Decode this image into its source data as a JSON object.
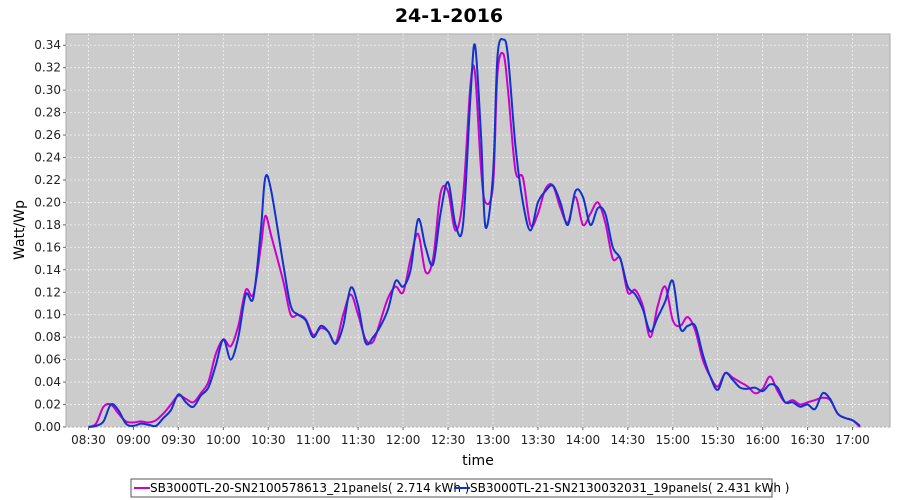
{
  "chart_data": {
    "type": "line",
    "title": "24-1-2016",
    "xlabel": "time",
    "ylabel": "Watt/Wp",
    "xlim": [
      "08:15",
      "17:25"
    ],
    "ylim": [
      0,
      0.35
    ],
    "grid": true,
    "legend_position": "bottom",
    "x_ticks": [
      "08:30",
      "09:00",
      "09:30",
      "10:00",
      "10:30",
      "11:00",
      "11:30",
      "12:00",
      "12:30",
      "13:00",
      "13:30",
      "14:00",
      "14:30",
      "15:00",
      "15:30",
      "16:00",
      "16:30",
      "17:00"
    ],
    "y_ticks": [
      "0.00",
      "0.02",
      "0.04",
      "0.06",
      "0.08",
      "0.10",
      "0.12",
      "0.14",
      "0.16",
      "0.18",
      "0.20",
      "0.22",
      "0.24",
      "0.26",
      "0.28",
      "0.30",
      "0.32",
      "0.34"
    ],
    "colors": {
      "plot_background": "#cccccc",
      "grid": "#f2f2f2",
      "series_1": "#cc00cc",
      "series_2": "#1133cc"
    },
    "series": [
      {
        "name": "SB3000TL-20-SN2100578613_21panels( 2.714 kWh )",
        "color": "#cc00cc",
        "points": [
          [
            "08:30",
            0.0
          ],
          [
            "08:35",
            0.003
          ],
          [
            "08:40",
            0.018
          ],
          [
            "08:45",
            0.02
          ],
          [
            "08:50",
            0.012
          ],
          [
            "08:55",
            0.005
          ],
          [
            "09:00",
            0.004
          ],
          [
            "09:05",
            0.005
          ],
          [
            "09:10",
            0.004
          ],
          [
            "09:15",
            0.006
          ],
          [
            "09:20",
            0.012
          ],
          [
            "09:25",
            0.02
          ],
          [
            "09:30",
            0.028
          ],
          [
            "09:35",
            0.025
          ],
          [
            "09:40",
            0.022
          ],
          [
            "09:45",
            0.03
          ],
          [
            "09:50",
            0.04
          ],
          [
            "09:55",
            0.065
          ],
          [
            "10:00",
            0.078
          ],
          [
            "10:05",
            0.072
          ],
          [
            "10:10",
            0.09
          ],
          [
            "10:15",
            0.122
          ],
          [
            "10:20",
            0.118
          ],
          [
            "10:25",
            0.16
          ],
          [
            "10:28",
            0.188
          ],
          [
            "10:32",
            0.17
          ],
          [
            "10:40",
            0.13
          ],
          [
            "10:45",
            0.1
          ],
          [
            "10:50",
            0.1
          ],
          [
            "10:55",
            0.096
          ],
          [
            "11:00",
            0.082
          ],
          [
            "11:05",
            0.088
          ],
          [
            "11:10",
            0.085
          ],
          [
            "11:15",
            0.075
          ],
          [
            "11:20",
            0.1
          ],
          [
            "11:25",
            0.118
          ],
          [
            "11:30",
            0.1
          ],
          [
            "11:35",
            0.078
          ],
          [
            "11:40",
            0.076
          ],
          [
            "11:45",
            0.095
          ],
          [
            "11:50",
            0.115
          ],
          [
            "11:55",
            0.125
          ],
          [
            "12:00",
            0.12
          ],
          [
            "12:05",
            0.15
          ],
          [
            "12:10",
            0.172
          ],
          [
            "12:15",
            0.138
          ],
          [
            "12:20",
            0.15
          ],
          [
            "12:25",
            0.208
          ],
          [
            "12:30",
            0.21
          ],
          [
            "12:35",
            0.175
          ],
          [
            "12:40",
            0.205
          ],
          [
            "12:45",
            0.305
          ],
          [
            "12:48",
            0.315
          ],
          [
            "12:52",
            0.23
          ],
          [
            "12:55",
            0.2
          ],
          [
            "13:00",
            0.215
          ],
          [
            "13:03",
            0.315
          ],
          [
            "13:07",
            0.332
          ],
          [
            "13:10",
            0.3
          ],
          [
            "13:15",
            0.228
          ],
          [
            "13:20",
            0.222
          ],
          [
            "13:25",
            0.18
          ],
          [
            "13:30",
            0.19
          ],
          [
            "13:35",
            0.212
          ],
          [
            "13:40",
            0.215
          ],
          [
            "13:45",
            0.195
          ],
          [
            "13:50",
            0.182
          ],
          [
            "13:55",
            0.205
          ],
          [
            "14:00",
            0.18
          ],
          [
            "14:05",
            0.19
          ],
          [
            "14:10",
            0.2
          ],
          [
            "14:15",
            0.182
          ],
          [
            "14:20",
            0.15
          ],
          [
            "14:25",
            0.15
          ],
          [
            "14:30",
            0.12
          ],
          [
            "14:35",
            0.122
          ],
          [
            "14:40",
            0.108
          ],
          [
            "14:45",
            0.08
          ],
          [
            "14:50",
            0.108
          ],
          [
            "14:55",
            0.125
          ],
          [
            "15:00",
            0.095
          ],
          [
            "15:05",
            0.09
          ],
          [
            "15:10",
            0.098
          ],
          [
            "15:15",
            0.086
          ],
          [
            "15:20",
            0.06
          ],
          [
            "15:25",
            0.045
          ],
          [
            "15:30",
            0.036
          ],
          [
            "15:35",
            0.048
          ],
          [
            "15:40",
            0.044
          ],
          [
            "15:45",
            0.04
          ],
          [
            "15:50",
            0.036
          ],
          [
            "15:55",
            0.03
          ],
          [
            "16:00",
            0.034
          ],
          [
            "16:05",
            0.045
          ],
          [
            "16:10",
            0.032
          ],
          [
            "16:15",
            0.022
          ],
          [
            "16:20",
            0.024
          ],
          [
            "16:25",
            0.02
          ],
          [
            "16:30",
            0.022
          ],
          [
            "16:35",
            0.024
          ],
          [
            "16:40",
            0.026
          ],
          [
            "16:45",
            0.024
          ],
          [
            "16:50",
            0.012
          ],
          [
            "16:55",
            0.008
          ],
          [
            "17:00",
            0.006
          ],
          [
            "17:05",
            0.0
          ]
        ]
      },
      {
        "name": "SB3000TL-21-SN2130032031_19panels( 2.431 kWh )",
        "color": "#1133cc",
        "points": [
          [
            "08:30",
            0.0
          ],
          [
            "08:35",
            0.001
          ],
          [
            "08:40",
            0.005
          ],
          [
            "08:45",
            0.02
          ],
          [
            "08:50",
            0.015
          ],
          [
            "08:55",
            0.003
          ],
          [
            "09:00",
            0.001
          ],
          [
            "09:05",
            0.003
          ],
          [
            "09:10",
            0.002
          ],
          [
            "09:15",
            0.001
          ],
          [
            "09:20",
            0.008
          ],
          [
            "09:25",
            0.015
          ],
          [
            "09:30",
            0.029
          ],
          [
            "09:35",
            0.022
          ],
          [
            "09:40",
            0.018
          ],
          [
            "09:45",
            0.028
          ],
          [
            "09:50",
            0.035
          ],
          [
            "09:55",
            0.055
          ],
          [
            "10:00",
            0.078
          ],
          [
            "10:05",
            0.06
          ],
          [
            "10:10",
            0.08
          ],
          [
            "10:15",
            0.118
          ],
          [
            "10:20",
            0.115
          ],
          [
            "10:25",
            0.175
          ],
          [
            "10:28",
            0.222
          ],
          [
            "10:32",
            0.21
          ],
          [
            "10:40",
            0.145
          ],
          [
            "10:45",
            0.108
          ],
          [
            "10:50",
            0.1
          ],
          [
            "10:55",
            0.095
          ],
          [
            "11:00",
            0.08
          ],
          [
            "11:05",
            0.09
          ],
          [
            "11:10",
            0.085
          ],
          [
            "11:15",
            0.074
          ],
          [
            "11:20",
            0.09
          ],
          [
            "11:25",
            0.124
          ],
          [
            "11:30",
            0.108
          ],
          [
            "11:35",
            0.075
          ],
          [
            "11:40",
            0.08
          ],
          [
            "11:45",
            0.09
          ],
          [
            "11:50",
            0.105
          ],
          [
            "11:55",
            0.13
          ],
          [
            "12:00",
            0.125
          ],
          [
            "12:05",
            0.14
          ],
          [
            "12:10",
            0.185
          ],
          [
            "12:15",
            0.16
          ],
          [
            "12:20",
            0.145
          ],
          [
            "12:25",
            0.19
          ],
          [
            "12:30",
            0.218
          ],
          [
            "12:35",
            0.18
          ],
          [
            "12:40",
            0.18
          ],
          [
            "12:45",
            0.295
          ],
          [
            "12:48",
            0.34
          ],
          [
            "12:52",
            0.26
          ],
          [
            "12:55",
            0.178
          ],
          [
            "13:00",
            0.225
          ],
          [
            "13:03",
            0.33
          ],
          [
            "13:07",
            0.345
          ],
          [
            "13:10",
            0.33
          ],
          [
            "13:15",
            0.25
          ],
          [
            "13:20",
            0.2
          ],
          [
            "13:25",
            0.175
          ],
          [
            "13:30",
            0.2
          ],
          [
            "13:35",
            0.21
          ],
          [
            "13:40",
            0.215
          ],
          [
            "13:45",
            0.2
          ],
          [
            "13:50",
            0.18
          ],
          [
            "13:55",
            0.21
          ],
          [
            "14:00",
            0.205
          ],
          [
            "14:05",
            0.18
          ],
          [
            "14:10",
            0.195
          ],
          [
            "14:15",
            0.19
          ],
          [
            "14:20",
            0.16
          ],
          [
            "14:25",
            0.15
          ],
          [
            "14:30",
            0.125
          ],
          [
            "14:35",
            0.118
          ],
          [
            "14:40",
            0.105
          ],
          [
            "14:45",
            0.085
          ],
          [
            "14:50",
            0.098
          ],
          [
            "14:55",
            0.112
          ],
          [
            "15:00",
            0.13
          ],
          [
            "15:05",
            0.088
          ],
          [
            "15:10",
            0.09
          ],
          [
            "15:15",
            0.09
          ],
          [
            "15:20",
            0.065
          ],
          [
            "15:25",
            0.045
          ],
          [
            "15:30",
            0.033
          ],
          [
            "15:35",
            0.048
          ],
          [
            "15:40",
            0.042
          ],
          [
            "15:45",
            0.035
          ],
          [
            "15:50",
            0.034
          ],
          [
            "15:55",
            0.035
          ],
          [
            "16:00",
            0.032
          ],
          [
            "16:05",
            0.038
          ],
          [
            "16:10",
            0.035
          ],
          [
            "16:15",
            0.022
          ],
          [
            "16:20",
            0.022
          ],
          [
            "16:25",
            0.018
          ],
          [
            "16:30",
            0.02
          ],
          [
            "16:35",
            0.016
          ],
          [
            "16:40",
            0.03
          ],
          [
            "16:45",
            0.025
          ],
          [
            "16:50",
            0.012
          ],
          [
            "16:55",
            0.008
          ],
          [
            "17:00",
            0.006
          ],
          [
            "17:05",
            0.001
          ]
        ]
      }
    ]
  }
}
